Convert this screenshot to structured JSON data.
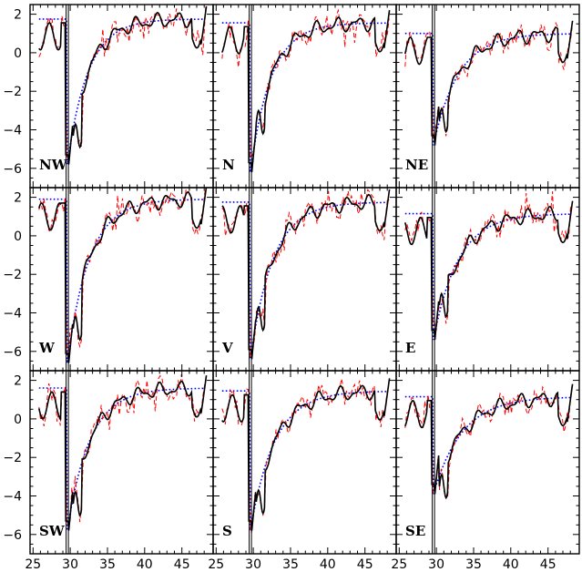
{
  "chart_data": {
    "type": "line",
    "x_ticks": [
      "25",
      "30",
      "35",
      "40",
      "45"
    ],
    "y_ticks": [
      "2",
      "0",
      "−2",
      "−4",
      "−6"
    ],
    "xlim": [
      24.6,
      49.2
    ],
    "ylim": [
      -7,
      2.5
    ],
    "layout": "3x3 grid of panels",
    "colors": {
      "data": "#ff0000",
      "smooth": "#000000",
      "model": "#0000ff"
    },
    "panels": [
      {
        "label": "NW",
        "plateau": 1.75,
        "depth": -5.8,
        "bump": -3.7,
        "k": 0.36
      },
      {
        "label": "N",
        "plateau": 1.55,
        "depth": -6.2,
        "bump": -3.0,
        "k": 0.36
      },
      {
        "label": "NE",
        "plateau": 1.0,
        "depth": -4.8,
        "bump": -2.9,
        "k": 0.3
      },
      {
        "label": "W",
        "plateau": 1.9,
        "depth": -6.6,
        "bump": -4.2,
        "k": 0.34
      },
      {
        "label": "V",
        "plateau": 1.75,
        "depth": -6.4,
        "bump": -3.7,
        "k": 0.33
      },
      {
        "label": "E",
        "plateau": 1.15,
        "depth": -5.4,
        "bump": -3.0,
        "k": 0.3
      },
      {
        "label": "SW",
        "plateau": 1.6,
        "depth": -5.8,
        "bump": -3.8,
        "k": 0.33
      },
      {
        "label": "S",
        "plateau": 1.45,
        "depth": -5.8,
        "bump": -3.7,
        "k": 0.31
      },
      {
        "label": "SE",
        "plateau": 1.15,
        "depth": -3.9,
        "bump": -2.9,
        "k": 0.26
      }
    ]
  }
}
